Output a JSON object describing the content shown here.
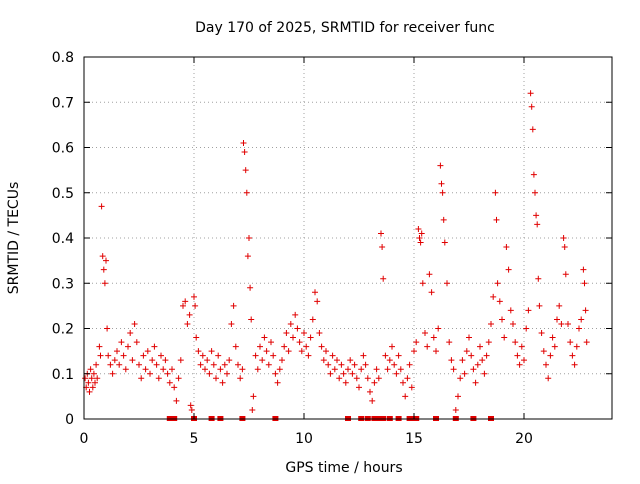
{
  "chart_data": {
    "type": "scatter",
    "title": "Day 170 of 2025, SRMTID for receiver func",
    "xlabel": "GPS time / hours",
    "ylabel": "SRMTID / TECUs",
    "xlim": [
      0,
      24
    ],
    "ylim": [
      0,
      0.8
    ],
    "x_ticks": [
      0,
      5,
      10,
      15,
      20
    ],
    "x_tick_labels": [
      "0",
      "5",
      "10",
      "15",
      "20"
    ],
    "y_ticks": [
      0,
      0.1,
      0.2,
      0.3,
      0.4,
      0.5,
      0.6,
      0.7,
      0.8
    ],
    "y_tick_labels": [
      "0",
      "0.1",
      "0.2",
      "0.3",
      "0.4",
      "0.5",
      "0.6",
      "0.7",
      "0.8"
    ],
    "grid": true,
    "marker": "+",
    "marker_color": "#e00000",
    "series": [
      {
        "name": "SRMTID",
        "points": [
          [
            0.05,
            0.09
          ],
          [
            0.1,
            0.07
          ],
          [
            0.15,
            0.1
          ],
          [
            0.2,
            0.08
          ],
          [
            0.25,
            0.06
          ],
          [
            0.3,
            0.11
          ],
          [
            0.35,
            0.09
          ],
          [
            0.4,
            0.07
          ],
          [
            0.45,
            0.1
          ],
          [
            0.5,
            0.08
          ],
          [
            0.55,
            0.12
          ],
          [
            0.6,
            0.09
          ],
          [
            0.7,
            0.16
          ],
          [
            0.75,
            0.14
          ],
          [
            0.8,
            0.47
          ],
          [
            0.85,
            0.36
          ],
          [
            0.9,
            0.33
          ],
          [
            0.95,
            0.3
          ],
          [
            1.0,
            0.35
          ],
          [
            1.05,
            0.2
          ],
          [
            1.1,
            0.14
          ],
          [
            1.2,
            0.12
          ],
          [
            1.3,
            0.1
          ],
          [
            1.4,
            0.13
          ],
          [
            1.5,
            0.15
          ],
          [
            1.6,
            0.12
          ],
          [
            1.7,
            0.17
          ],
          [
            1.8,
            0.14
          ],
          [
            1.9,
            0.11
          ],
          [
            2.0,
            0.16
          ],
          [
            2.1,
            0.19
          ],
          [
            2.2,
            0.13
          ],
          [
            2.3,
            0.21
          ],
          [
            2.4,
            0.17
          ],
          [
            2.5,
            0.12
          ],
          [
            2.6,
            0.09
          ],
          [
            2.7,
            0.14
          ],
          [
            2.8,
            0.11
          ],
          [
            2.9,
            0.15
          ],
          [
            3.0,
            0.1
          ],
          [
            3.1,
            0.13
          ],
          [
            3.2,
            0.16
          ],
          [
            3.3,
            0.12
          ],
          [
            3.4,
            0.09
          ],
          [
            3.5,
            0.14
          ],
          [
            3.6,
            0.11
          ],
          [
            3.7,
            0.13
          ],
          [
            3.8,
            0.1
          ],
          [
            3.9,
            0.08
          ],
          [
            4.0,
            0.11
          ],
          [
            4.1,
            0.07
          ],
          [
            4.2,
            0.04
          ],
          [
            4.3,
            0.09
          ],
          [
            4.4,
            0.13
          ],
          [
            4.5,
            0.25
          ],
          [
            4.6,
            0.26
          ],
          [
            4.7,
            0.21
          ],
          [
            4.8,
            0.23
          ],
          [
            4.85,
            0.03
          ],
          [
            4.9,
            0.02
          ],
          [
            5.0,
            0.27
          ],
          [
            5.05,
            0.25
          ],
          [
            5.1,
            0.18
          ],
          [
            5.2,
            0.15
          ],
          [
            5.3,
            0.12
          ],
          [
            5.4,
            0.14
          ],
          [
            5.5,
            0.11
          ],
          [
            5.6,
            0.13
          ],
          [
            5.7,
            0.1
          ],
          [
            5.8,
            0.15
          ],
          [
            5.9,
            0.12
          ],
          [
            6.0,
            0.09
          ],
          [
            6.1,
            0.14
          ],
          [
            6.2,
            0.11
          ],
          [
            6.3,
            0.08
          ],
          [
            6.4,
            0.12
          ],
          [
            6.5,
            0.1
          ],
          [
            6.6,
            0.13
          ],
          [
            6.7,
            0.21
          ],
          [
            6.8,
            0.25
          ],
          [
            6.9,
            0.16
          ],
          [
            7.0,
            0.12
          ],
          [
            7.1,
            0.09
          ],
          [
            7.2,
            0.11
          ],
          [
            7.25,
            0.61
          ],
          [
            7.3,
            0.59
          ],
          [
            7.35,
            0.55
          ],
          [
            7.4,
            0.5
          ],
          [
            7.45,
            0.36
          ],
          [
            7.5,
            0.4
          ],
          [
            7.55,
            0.29
          ],
          [
            7.6,
            0.22
          ],
          [
            7.65,
            0.02
          ],
          [
            7.7,
            0.05
          ],
          [
            7.8,
            0.14
          ],
          [
            7.9,
            0.11
          ],
          [
            8.0,
            0.16
          ],
          [
            8.1,
            0.13
          ],
          [
            8.2,
            0.18
          ],
          [
            8.3,
            0.15
          ],
          [
            8.4,
            0.12
          ],
          [
            8.5,
            0.17
          ],
          [
            8.6,
            0.14
          ],
          [
            8.7,
            0.1
          ],
          [
            8.8,
            0.08
          ],
          [
            8.9,
            0.11
          ],
          [
            9.0,
            0.13
          ],
          [
            9.1,
            0.16
          ],
          [
            9.2,
            0.19
          ],
          [
            9.3,
            0.15
          ],
          [
            9.4,
            0.21
          ],
          [
            9.5,
            0.18
          ],
          [
            9.6,
            0.23
          ],
          [
            9.7,
            0.2
          ],
          [
            9.8,
            0.17
          ],
          [
            9.9,
            0.15
          ],
          [
            10.0,
            0.19
          ],
          [
            10.1,
            0.16
          ],
          [
            10.2,
            0.14
          ],
          [
            10.3,
            0.18
          ],
          [
            10.4,
            0.22
          ],
          [
            10.5,
            0.28
          ],
          [
            10.6,
            0.26
          ],
          [
            10.7,
            0.19
          ],
          [
            10.8,
            0.16
          ],
          [
            10.9,
            0.13
          ],
          [
            11.0,
            0.15
          ],
          [
            11.1,
            0.12
          ],
          [
            11.2,
            0.1
          ],
          [
            11.3,
            0.14
          ],
          [
            11.4,
            0.11
          ],
          [
            11.5,
            0.13
          ],
          [
            11.6,
            0.09
          ],
          [
            11.7,
            0.12
          ],
          [
            11.8,
            0.1
          ],
          [
            11.9,
            0.08
          ],
          [
            12.0,
            0.11
          ],
          [
            12.1,
            0.13
          ],
          [
            12.2,
            0.1
          ],
          [
            12.3,
            0.12
          ],
          [
            12.4,
            0.09
          ],
          [
            12.5,
            0.07
          ],
          [
            12.6,
            0.11
          ],
          [
            12.7,
            0.14
          ],
          [
            12.8,
            0.12
          ],
          [
            12.9,
            0.09
          ],
          [
            13.0,
            0.06
          ],
          [
            13.1,
            0.04
          ],
          [
            13.2,
            0.08
          ],
          [
            13.3,
            0.11
          ],
          [
            13.4,
            0.09
          ],
          [
            13.5,
            0.41
          ],
          [
            13.55,
            0.38
          ],
          [
            13.6,
            0.31
          ],
          [
            13.7,
            0.14
          ],
          [
            13.8,
            0.11
          ],
          [
            13.9,
            0.13
          ],
          [
            14.0,
            0.16
          ],
          [
            14.1,
            0.12
          ],
          [
            14.2,
            0.1
          ],
          [
            14.3,
            0.14
          ],
          [
            14.4,
            0.11
          ],
          [
            14.5,
            0.08
          ],
          [
            14.6,
            0.05
          ],
          [
            14.7,
            0.09
          ],
          [
            14.8,
            0.12
          ],
          [
            14.9,
            0.07
          ],
          [
            15.0,
            0.15
          ],
          [
            15.1,
            0.17
          ],
          [
            15.2,
            0.42
          ],
          [
            15.25,
            0.4
          ],
          [
            15.3,
            0.39
          ],
          [
            15.35,
            0.41
          ],
          [
            15.4,
            0.3
          ],
          [
            15.5,
            0.19
          ],
          [
            15.6,
            0.16
          ],
          [
            15.7,
            0.32
          ],
          [
            15.8,
            0.28
          ],
          [
            15.9,
            0.18
          ],
          [
            16.0,
            0.15
          ],
          [
            16.1,
            0.2
          ],
          [
            16.2,
            0.56
          ],
          [
            16.25,
            0.52
          ],
          [
            16.3,
            0.5
          ],
          [
            16.35,
            0.44
          ],
          [
            16.4,
            0.39
          ],
          [
            16.5,
            0.3
          ],
          [
            16.6,
            0.17
          ],
          [
            16.7,
            0.13
          ],
          [
            16.8,
            0.11
          ],
          [
            16.9,
            0.02
          ],
          [
            17.0,
            0.05
          ],
          [
            17.1,
            0.09
          ],
          [
            17.2,
            0.13
          ],
          [
            17.3,
            0.1
          ],
          [
            17.4,
            0.15
          ],
          [
            17.5,
            0.18
          ],
          [
            17.6,
            0.14
          ],
          [
            17.7,
            0.11
          ],
          [
            17.8,
            0.08
          ],
          [
            17.9,
            0.12
          ],
          [
            18.0,
            0.16
          ],
          [
            18.1,
            0.13
          ],
          [
            18.2,
            0.1
          ],
          [
            18.3,
            0.14
          ],
          [
            18.4,
            0.17
          ],
          [
            18.5,
            0.21
          ],
          [
            18.6,
            0.27
          ],
          [
            18.7,
            0.5
          ],
          [
            18.75,
            0.44
          ],
          [
            18.8,
            0.3
          ],
          [
            18.9,
            0.26
          ],
          [
            19.0,
            0.22
          ],
          [
            19.1,
            0.18
          ],
          [
            19.2,
            0.38
          ],
          [
            19.3,
            0.33
          ],
          [
            19.4,
            0.24
          ],
          [
            19.5,
            0.21
          ],
          [
            19.6,
            0.17
          ],
          [
            19.7,
            0.14
          ],
          [
            19.8,
            0.12
          ],
          [
            19.9,
            0.16
          ],
          [
            20.0,
            0.13
          ],
          [
            20.1,
            0.2
          ],
          [
            20.2,
            0.24
          ],
          [
            20.3,
            0.72
          ],
          [
            20.35,
            0.69
          ],
          [
            20.4,
            0.64
          ],
          [
            20.45,
            0.54
          ],
          [
            20.5,
            0.5
          ],
          [
            20.55,
            0.45
          ],
          [
            20.6,
            0.43
          ],
          [
            20.65,
            0.31
          ],
          [
            20.7,
            0.25
          ],
          [
            20.8,
            0.19
          ],
          [
            20.9,
            0.15
          ],
          [
            21.0,
            0.12
          ],
          [
            21.1,
            0.09
          ],
          [
            21.2,
            0.14
          ],
          [
            21.3,
            0.18
          ],
          [
            21.4,
            0.16
          ],
          [
            21.5,
            0.22
          ],
          [
            21.6,
            0.25
          ],
          [
            21.7,
            0.21
          ],
          [
            21.8,
            0.4
          ],
          [
            21.85,
            0.38
          ],
          [
            21.9,
            0.32
          ],
          [
            22.0,
            0.21
          ],
          [
            22.1,
            0.17
          ],
          [
            22.2,
            0.14
          ],
          [
            22.3,
            0.12
          ],
          [
            22.4,
            0.16
          ],
          [
            22.5,
            0.2
          ],
          [
            22.6,
            0.22
          ],
          [
            22.7,
            0.33
          ],
          [
            22.75,
            0.3
          ],
          [
            22.8,
            0.24
          ],
          [
            22.85,
            0.17
          ]
        ],
        "zero_markers_x": [
          3.9,
          4.0,
          4.1,
          5.0,
          5.8,
          6.2,
          7.2,
          8.7,
          12.0,
          12.6,
          12.9,
          13.2,
          13.4,
          13.6,
          13.9,
          14.3,
          14.8,
          15.0,
          15.1,
          16.0,
          16.9,
          17.7,
          18.5
        ]
      }
    ]
  }
}
